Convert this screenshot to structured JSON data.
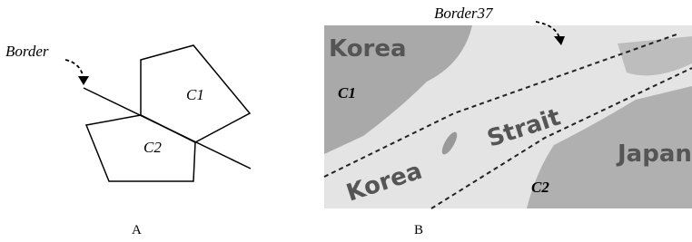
{
  "panel_a": {
    "border_label": "Border",
    "cell_1": "C1",
    "cell_2": "C2",
    "caption": "A"
  },
  "panel_b": {
    "border_label": "Border37",
    "cell_1": "C1",
    "cell_2": "C2",
    "labels": [
      "Korea",
      "Korea",
      "Strait",
      "Japan"
    ],
    "caption": "B"
  }
}
